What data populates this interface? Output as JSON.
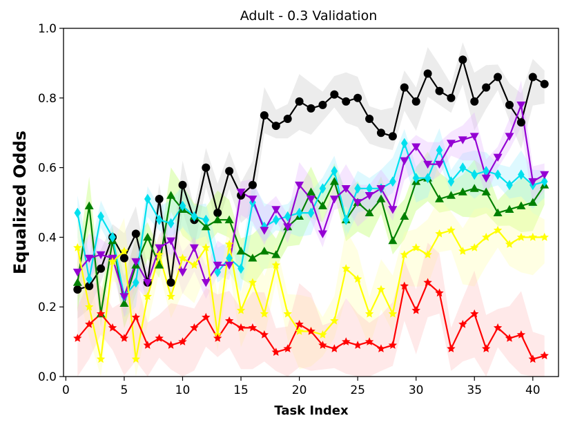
{
  "chart_data": {
    "type": "line",
    "title": "Adult - 0.3 Validation",
    "xlabel": "Task Index",
    "ylabel": "Equalized Odds",
    "xlim": [
      -0.2,
      42.2
    ],
    "ylim": [
      0.0,
      1.0
    ],
    "xticks": [
      0,
      5,
      10,
      15,
      20,
      25,
      30,
      35,
      40
    ],
    "xtick_labels": [
      "0",
      "5",
      "10",
      "15",
      "20",
      "25",
      "30",
      "35",
      "40"
    ],
    "yticks": [
      0.0,
      0.2,
      0.4,
      0.6,
      0.8,
      1.0
    ],
    "ytick_labels": [
      "0.0",
      "0.2",
      "0.4",
      "0.6",
      "0.8",
      "1.0"
    ],
    "grid": false,
    "x": [
      1,
      2,
      3,
      4,
      5,
      6,
      7,
      8,
      9,
      10,
      11,
      12,
      13,
      14,
      15,
      16,
      17,
      18,
      19,
      20,
      21,
      22,
      23,
      24,
      25,
      26,
      27,
      28,
      29,
      30,
      31,
      32,
      33,
      34,
      35,
      36,
      37,
      38,
      39,
      40,
      41
    ],
    "series": [
      {
        "name": "black",
        "color": "#000000",
        "marker": "circle",
        "band_color": "#c8c8c8",
        "band_width": 0.06,
        "values": [
          0.25,
          0.26,
          0.31,
          0.4,
          0.34,
          0.41,
          0.27,
          0.51,
          0.27,
          0.55,
          0.45,
          0.6,
          0.47,
          0.59,
          0.52,
          0.55,
          0.75,
          0.72,
          0.74,
          0.79,
          0.77,
          0.78,
          0.81,
          0.79,
          0.8,
          0.74,
          0.7,
          0.69,
          0.83,
          0.79,
          0.87,
          0.82,
          0.8,
          0.91,
          0.79,
          0.83,
          0.86,
          0.78,
          0.73,
          0.86,
          0.84
        ]
      },
      {
        "name": "green",
        "color": "#008000",
        "marker": "triangle-up",
        "band_color": "#b6ff5a",
        "band_width": 0.06,
        "values": [
          0.27,
          0.49,
          0.18,
          0.39,
          0.21,
          0.32,
          0.4,
          0.32,
          0.52,
          0.48,
          0.46,
          0.43,
          0.45,
          0.45,
          0.36,
          0.34,
          0.36,
          0.35,
          0.43,
          0.46,
          0.53,
          0.49,
          0.56,
          0.45,
          0.5,
          0.47,
          0.51,
          0.39,
          0.46,
          0.56,
          0.57,
          0.51,
          0.52,
          0.53,
          0.54,
          0.53,
          0.47,
          0.48,
          0.49,
          0.5,
          0.55
        ]
      },
      {
        "name": "cyan",
        "color": "#00e0ee",
        "marker": "diamond",
        "band_color": "#a0eeff",
        "band_width": 0.05,
        "values": [
          0.47,
          0.28,
          0.46,
          0.4,
          0.23,
          0.27,
          0.51,
          0.45,
          0.44,
          0.49,
          0.46,
          0.45,
          0.3,
          0.34,
          0.31,
          0.5,
          0.43,
          0.45,
          0.46,
          0.47,
          0.47,
          0.54,
          0.59,
          0.45,
          0.54,
          0.54,
          0.54,
          0.56,
          0.67,
          0.57,
          0.57,
          0.65,
          0.56,
          0.6,
          0.58,
          0.59,
          0.58,
          0.55,
          0.58,
          0.55,
          0.56
        ]
      },
      {
        "name": "purple",
        "color": "#9400d3",
        "marker": "triangle-down",
        "band_color": "#e6b6ff",
        "band_width": 0.05,
        "values": [
          0.3,
          0.34,
          0.35,
          0.34,
          0.23,
          0.33,
          0.27,
          0.37,
          0.39,
          0.3,
          0.37,
          0.27,
          0.32,
          0.32,
          0.53,
          0.51,
          0.42,
          0.48,
          0.43,
          0.55,
          0.51,
          0.41,
          0.51,
          0.54,
          0.5,
          0.52,
          0.54,
          0.48,
          0.62,
          0.66,
          0.61,
          0.61,
          0.67,
          0.68,
          0.69,
          0.57,
          0.63,
          0.69,
          0.78,
          0.56,
          0.58
        ]
      },
      {
        "name": "yellow",
        "color": "#ffff00",
        "marker": "star",
        "band_color": "#ffffb0",
        "band_width": 0.08,
        "values": [
          0.37,
          0.2,
          0.05,
          0.33,
          0.36,
          0.05,
          0.23,
          0.35,
          0.23,
          0.34,
          0.32,
          0.37,
          0.12,
          0.38,
          0.19,
          0.27,
          0.18,
          0.32,
          0.18,
          0.13,
          0.13,
          0.12,
          0.16,
          0.31,
          0.28,
          0.18,
          0.25,
          0.18,
          0.35,
          0.37,
          0.35,
          0.41,
          0.42,
          0.36,
          0.37,
          0.4,
          0.42,
          0.38,
          0.4,
          0.4,
          0.4
        ]
      },
      {
        "name": "red",
        "color": "#ff0000",
        "marker": "star",
        "band_color": "#ffc0c0",
        "band_width": 0.09,
        "values": [
          0.11,
          0.15,
          0.18,
          0.14,
          0.11,
          0.17,
          0.09,
          0.11,
          0.09,
          0.1,
          0.14,
          0.17,
          0.11,
          0.16,
          0.14,
          0.14,
          0.12,
          0.07,
          0.08,
          0.15,
          0.13,
          0.09,
          0.08,
          0.1,
          0.09,
          0.1,
          0.08,
          0.09,
          0.26,
          0.19,
          0.27,
          0.24,
          0.08,
          0.15,
          0.18,
          0.08,
          0.14,
          0.11,
          0.12,
          0.05,
          0.06
        ]
      }
    ]
  }
}
